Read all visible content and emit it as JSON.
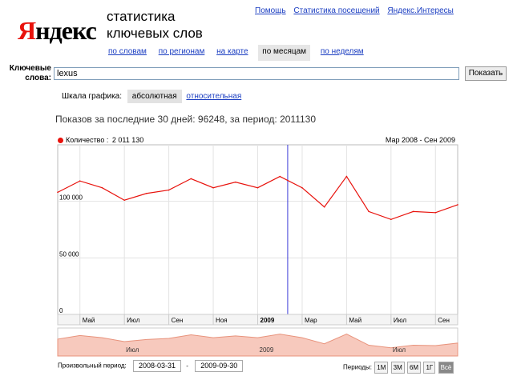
{
  "logo": {
    "first_letter": "Я",
    "rest": "ндекс"
  },
  "service_title": {
    "line1": "статистика",
    "line2": "ключевых слов"
  },
  "top_links": [
    "Помощь",
    "Статистика посещений",
    "Яндекс.Интересы"
  ],
  "tabs": [
    {
      "label": "по словам",
      "active": false
    },
    {
      "label": "по регионам",
      "active": false
    },
    {
      "label": "на карте",
      "active": false
    },
    {
      "label": "по месяцам",
      "active": true
    },
    {
      "label": "по неделям",
      "active": false
    }
  ],
  "query": {
    "label_line1": "Ключевые",
    "label_line2": "слова:",
    "value": "lexus",
    "button": "Показать"
  },
  "scale": {
    "label": "Шкала графика:",
    "active": "абсолютная",
    "other": "относительная"
  },
  "summary": "Показов за последние 30 дней: 96248, за период: 2011130",
  "chart_data": {
    "type": "line",
    "series": [
      {
        "name": "Количество",
        "x": [
          "2008-03",
          "2008-04",
          "2008-05",
          "2008-06",
          "2008-07",
          "2008-08",
          "2008-09",
          "2008-10",
          "2008-11",
          "2008-12",
          "2009-01",
          "2009-02",
          "2009-03",
          "2009-04",
          "2009-05",
          "2009-06",
          "2009-07",
          "2009-08",
          "2009-09"
        ],
        "values": [
          108000,
          118000,
          112000,
          101000,
          107000,
          110000,
          120000,
          112000,
          117000,
          112000,
          122000,
          112000,
          95000,
          122000,
          91000,
          84000,
          91000,
          90000,
          97000
        ]
      }
    ],
    "legend_value": "2 011 130",
    "legend_color": "#e8120c",
    "range_label": "Мар 2008 - Сен 2009",
    "ylim": [
      0,
      150000
    ],
    "y_ticks": [
      {
        "value": 0,
        "label": "0"
      },
      {
        "value": 50000,
        "label": "50 000"
      },
      {
        "value": 100000,
        "label": "100 000"
      }
    ],
    "x_tick_labels": [
      {
        "index": 1,
        "label": "Май",
        "bold": false
      },
      {
        "index": 3,
        "label": "Июл",
        "bold": false
      },
      {
        "index": 5,
        "label": "Сен",
        "bold": false
      },
      {
        "index": 7,
        "label": "Ноя",
        "bold": false
      },
      {
        "index": 9,
        "label": "2009",
        "bold": true
      },
      {
        "index": 11,
        "label": "Мар",
        "bold": false
      },
      {
        "index": 13,
        "label": "Май",
        "bold": false
      },
      {
        "index": 15,
        "label": "Июл",
        "bold": false
      },
      {
        "index": 17,
        "label": "Сен",
        "bold": false
      }
    ],
    "cursor_month_offset": 10.35,
    "overview_labels": [
      "Июл",
      "2009",
      "Июл"
    ],
    "grid": true
  },
  "period": {
    "label": "Произвольный период:",
    "from": "2008-03-31",
    "dash": "-",
    "to": "2009-09-30"
  },
  "periods": {
    "label": "Периоды:",
    "buttons": [
      "1М",
      "3М",
      "6М",
      "1Г",
      "Всё"
    ],
    "active": "Всё"
  }
}
